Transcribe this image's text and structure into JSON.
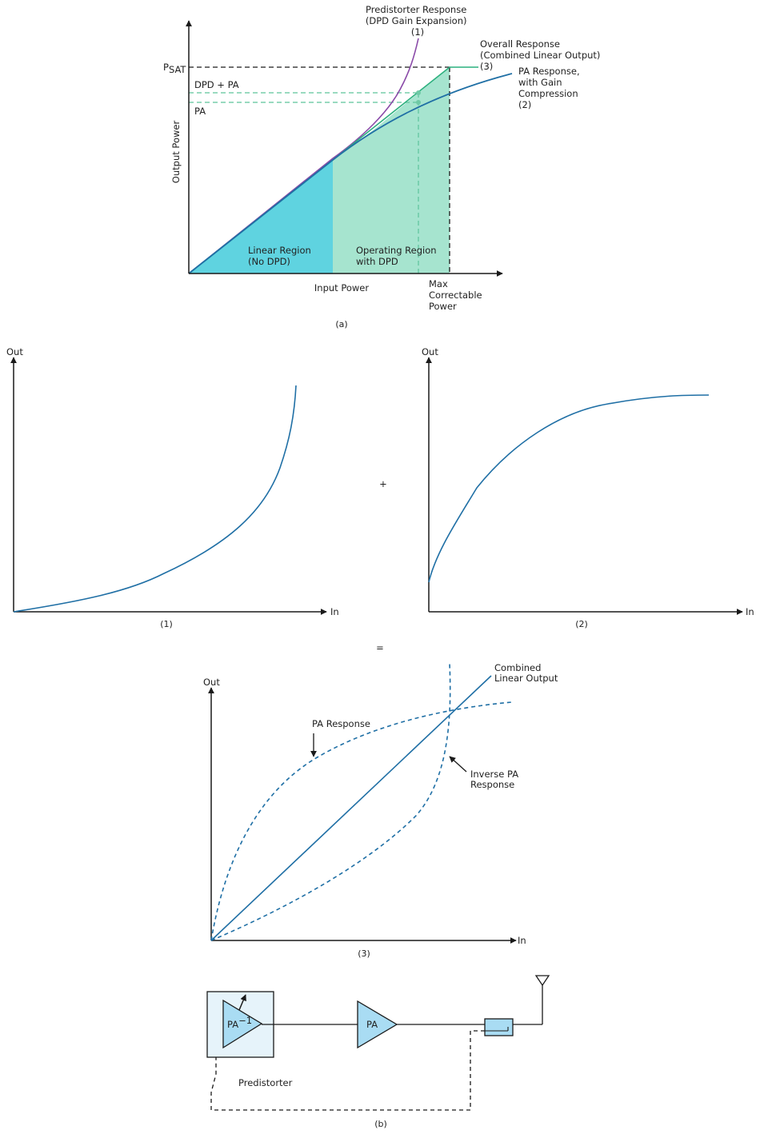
{
  "colors": {
    "curve_blue": "#1f6fa5",
    "predistorter_purple": "#8a4aa8",
    "overall_green": "#2cb07e",
    "linear_fill": "#5fd3e0",
    "operating_fill": "#a6e4cf",
    "amp_fill": "#a9dcf3",
    "box_fill": "#e6f3fa",
    "axis": "#1a1a1a"
  },
  "panel_a": {
    "y_axis_label": "Output Power",
    "x_axis_label": "Input Power",
    "psat_label": "P",
    "psat_sub": "SAT",
    "dpd_pa_label": "DPD + PA",
    "pa_label": "PA",
    "predistorter_label": [
      "Predistorter Response",
      "(DPD Gain Expansion)",
      "(1)"
    ],
    "overall_label": [
      "Overall Response",
      "(Combined Linear Output)",
      "(3)"
    ],
    "pa_response_label": [
      "PA Response,",
      "with Gain",
      "Compression",
      "(2)"
    ],
    "linear_region_label": [
      "Linear Region",
      "(No DPD)"
    ],
    "operating_region_label": [
      "Operating Region",
      "with DPD"
    ],
    "max_power_label": [
      "Max",
      "Correctable",
      "Power"
    ],
    "caption": "(a)"
  },
  "panel_1": {
    "y_label": "Out",
    "x_label": "In",
    "caption": "(1)"
  },
  "plus_sign": "+",
  "panel_2": {
    "y_label": "Out",
    "x_label": "In",
    "caption": "(2)"
  },
  "equals_sign": "=",
  "panel_3": {
    "y_label": "Out",
    "x_label": "In",
    "combined_label": [
      "Combined",
      "Linear Output"
    ],
    "pa_response_label": "PA Response",
    "inverse_label": [
      "Inverse PA",
      "Response"
    ],
    "caption": "(3)"
  },
  "panel_b": {
    "predistorter_amp_label": "PA",
    "predistorter_amp_sup": "−1",
    "pa_amp_label": "PA",
    "predistorter_label": "Predistorter",
    "caption": "(b)"
  }
}
